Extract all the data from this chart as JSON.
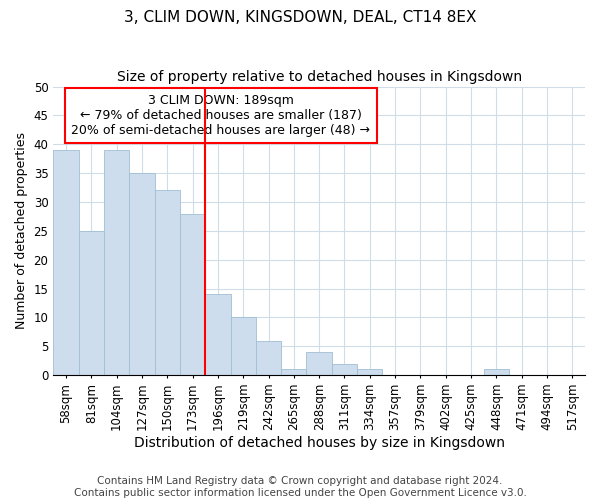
{
  "title": "3, CLIM DOWN, KINGSDOWN, DEAL, CT14 8EX",
  "subtitle": "Size of property relative to detached houses in Kingsdown",
  "xlabel": "Distribution of detached houses by size in Kingsdown",
  "ylabel": "Number of detached properties",
  "categories": [
    "58sqm",
    "81sqm",
    "104sqm",
    "127sqm",
    "150sqm",
    "173sqm",
    "196sqm",
    "219sqm",
    "242sqm",
    "265sqm",
    "288sqm",
    "311sqm",
    "334sqm",
    "357sqm",
    "379sqm",
    "402sqm",
    "425sqm",
    "448sqm",
    "471sqm",
    "494sqm",
    "517sqm"
  ],
  "values": [
    39,
    25,
    39,
    35,
    32,
    28,
    14,
    10,
    6,
    1,
    4,
    2,
    1,
    0,
    0,
    0,
    0,
    1,
    0,
    0,
    0
  ],
  "bar_color": "#cddded",
  "bar_edge_color": "#a0bfd4",
  "grid_color": "#d0dce8",
  "vline_color": "red",
  "annotation_text": "3 CLIM DOWN: 189sqm\n← 79% of detached houses are smaller (187)\n20% of semi-detached houses are larger (48) →",
  "annotation_box_color": "white",
  "annotation_box_edge_color": "red",
  "ylim": [
    0,
    50
  ],
  "yticks": [
    0,
    5,
    10,
    15,
    20,
    25,
    30,
    35,
    40,
    45,
    50
  ],
  "title_fontsize": 11,
  "subtitle_fontsize": 10,
  "xlabel_fontsize": 10,
  "ylabel_fontsize": 9,
  "tick_fontsize": 8.5,
  "annotation_fontsize": 9,
  "footer_line1": "Contains HM Land Registry data © Crown copyright and database right 2024.",
  "footer_line2": "Contains public sector information licensed under the Open Government Licence v3.0.",
  "footer_fontsize": 7.5
}
